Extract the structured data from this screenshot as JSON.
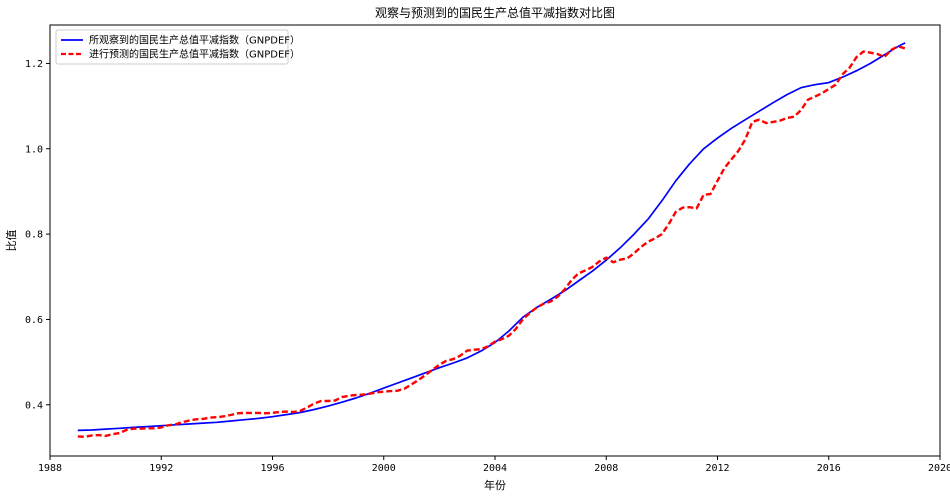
{
  "chart_data": {
    "type": "line",
    "title": "观察与预测到的国民生产总值平减指数对比图",
    "xlabel": "年份",
    "ylabel": "比值",
    "xlim": [
      1988.0,
      2020.0
    ],
    "ylim": [
      0.28,
      1.29
    ],
    "xticks": [
      1988,
      1992,
      1996,
      2000,
      2004,
      2008,
      2012,
      2016,
      2020
    ],
    "yticks": [
      0.4,
      0.6,
      0.8,
      1.0,
      1.2
    ],
    "ytick_labels": [
      "0.4",
      "0.6",
      "0.8",
      "1.0",
      "1.2"
    ],
    "grid": false,
    "legend_position": "upper-left",
    "series": [
      {
        "name": "所观察到的国民生产总值平减指数（GNPDEF）",
        "color": "#0000ff",
        "style": "solid",
        "x": [
          1989.0,
          1989.5,
          1990.0,
          1990.5,
          1991.0,
          1991.5,
          1992.0,
          1992.5,
          1993.0,
          1993.5,
          1994.0,
          1994.5,
          1995.0,
          1995.5,
          1996.0,
          1996.5,
          1997.0,
          1997.5,
          1998.0,
          1998.5,
          1999.0,
          1999.5,
          2000.0,
          2000.5,
          2001.0,
          2001.5,
          2002.0,
          2002.5,
          2003.0,
          2003.5,
          2004.0,
          2004.5,
          2005.0,
          2005.5,
          2006.0,
          2006.5,
          2007.0,
          2007.5,
          2008.0,
          2008.5,
          2009.0,
          2009.5,
          2010.0,
          2010.5,
          2011.0,
          2011.5,
          2012.0,
          2012.5,
          2013.0,
          2013.5,
          2014.0,
          2014.5,
          2015.0,
          2015.5,
          2016.0,
          2016.5,
          2017.0,
          2017.5,
          2018.0,
          2018.5,
          2018.75
        ],
        "values": [
          0.34,
          0.341,
          0.343,
          0.345,
          0.347,
          0.349,
          0.351,
          0.353,
          0.355,
          0.357,
          0.359,
          0.362,
          0.365,
          0.368,
          0.372,
          0.377,
          0.382,
          0.389,
          0.397,
          0.406,
          0.416,
          0.427,
          0.439,
          0.451,
          0.463,
          0.475,
          0.487,
          0.498,
          0.51,
          0.526,
          0.546,
          0.573,
          0.605,
          0.628,
          0.647,
          0.667,
          0.69,
          0.713,
          0.739,
          0.768,
          0.8,
          0.835,
          0.878,
          0.925,
          0.965,
          1.0,
          1.025,
          1.048,
          1.068,
          1.088,
          1.108,
          1.127,
          1.143,
          1.15,
          1.155,
          1.168,
          1.183,
          1.2,
          1.22,
          1.24,
          1.248
        ]
      },
      {
        "name": "进行预测的国民生产总值平减指数（GNPDEF）",
        "color": "#ff0000",
        "style": "dashed",
        "x": [
          1989.0,
          1989.25,
          1989.5,
          1989.75,
          1990.0,
          1990.25,
          1990.5,
          1990.75,
          1991.0,
          1991.25,
          1991.5,
          1991.75,
          1992.0,
          1992.25,
          1992.5,
          1992.75,
          1993.0,
          1993.25,
          1993.5,
          1993.75,
          1994.0,
          1994.25,
          1994.5,
          1994.75,
          1995.0,
          1995.25,
          1995.5,
          1995.75,
          1996.0,
          1996.25,
          1996.5,
          1996.75,
          1997.0,
          1997.25,
          1997.5,
          1997.75,
          1998.0,
          1998.25,
          1998.5,
          1998.75,
          1999.0,
          1999.25,
          1999.5,
          1999.75,
          2000.0,
          2000.25,
          2000.5,
          2000.75,
          2001.0,
          2001.25,
          2001.5,
          2001.75,
          2002.0,
          2002.25,
          2002.5,
          2002.75,
          2003.0,
          2003.25,
          2003.5,
          2003.75,
          2004.0,
          2004.25,
          2004.5,
          2004.75,
          2005.0,
          2005.25,
          2005.5,
          2005.75,
          2006.0,
          2006.25,
          2006.5,
          2006.75,
          2007.0,
          2007.25,
          2007.5,
          2007.75,
          2008.0,
          2008.25,
          2008.5,
          2008.75,
          2009.0,
          2009.25,
          2009.5,
          2009.75,
          2010.0,
          2010.25,
          2010.5,
          2010.75,
          2011.0,
          2011.25,
          2011.5,
          2011.75,
          2012.0,
          2012.25,
          2012.5,
          2012.75,
          2013.0,
          2013.25,
          2013.5,
          2013.75,
          2014.0,
          2014.25,
          2014.5,
          2014.75,
          2015.0,
          2015.25,
          2015.5,
          2015.75,
          2016.0,
          2016.25,
          2016.5,
          2016.75,
          2017.0,
          2017.25,
          2017.5,
          2017.75,
          2018.0,
          2018.25,
          2018.5,
          2018.75
        ],
        "values": [
          0.326,
          0.325,
          0.328,
          0.329,
          0.327,
          0.331,
          0.334,
          0.341,
          0.344,
          0.344,
          0.345,
          0.345,
          0.347,
          0.352,
          0.354,
          0.359,
          0.363,
          0.366,
          0.367,
          0.37,
          0.371,
          0.373,
          0.376,
          0.38,
          0.381,
          0.381,
          0.381,
          0.38,
          0.381,
          0.383,
          0.384,
          0.383,
          0.386,
          0.394,
          0.403,
          0.409,
          0.409,
          0.41,
          0.418,
          0.421,
          0.423,
          0.424,
          0.426,
          0.429,
          0.431,
          0.432,
          0.433,
          0.438,
          0.448,
          0.458,
          0.47,
          0.482,
          0.494,
          0.503,
          0.507,
          0.515,
          0.527,
          0.529,
          0.53,
          0.537,
          0.548,
          0.554,
          0.562,
          0.578,
          0.6,
          0.615,
          0.628,
          0.637,
          0.642,
          0.653,
          0.67,
          0.692,
          0.708,
          0.715,
          0.723,
          0.736,
          0.745,
          0.734,
          0.74,
          0.743,
          0.755,
          0.77,
          0.782,
          0.79,
          0.8,
          0.824,
          0.852,
          0.862,
          0.863,
          0.86,
          0.892,
          0.894,
          0.925,
          0.955,
          0.975,
          0.995,
          1.022,
          1.063,
          1.068,
          1.06,
          1.063,
          1.066,
          1.072,
          1.075,
          1.09,
          1.115,
          1.122,
          1.13,
          1.14,
          1.15,
          1.175,
          1.19,
          1.215,
          1.228,
          1.225,
          1.222,
          1.215,
          1.232,
          1.24,
          1.235
        ]
      }
    ]
  }
}
